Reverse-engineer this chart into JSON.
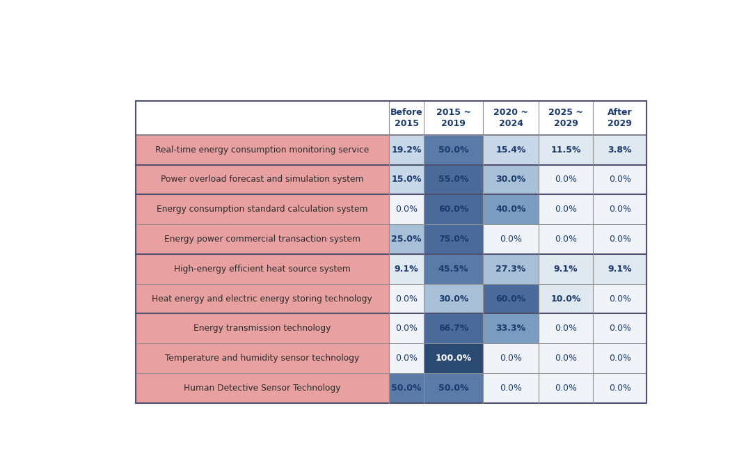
{
  "rows": [
    {
      "label": "Real-time energy consumption monitoring service",
      "values": [
        19.2,
        50.0,
        15.4,
        11.5,
        3.8
      ],
      "group": 0
    },
    {
      "label": "Power overload forecast and simulation system",
      "values": [
        15.0,
        55.0,
        30.0,
        0.0,
        0.0
      ],
      "group": 1
    },
    {
      "label": "Energy consumption standard calculation system",
      "values": [
        0.0,
        60.0,
        40.0,
        0.0,
        0.0
      ],
      "group": 2
    },
    {
      "label": "Energy power commercial transaction system",
      "values": [
        25.0,
        75.0,
        0.0,
        0.0,
        0.0
      ],
      "group": 2
    },
    {
      "label": "High-energy efficient heat source system",
      "values": [
        9.1,
        45.5,
        27.3,
        9.1,
        9.1
      ],
      "group": 3
    },
    {
      "label": "Heat energy and electric energy storing technology",
      "values": [
        0.0,
        30.0,
        60.0,
        10.0,
        0.0
      ],
      "group": 3
    },
    {
      "label": "Energy transmission technology",
      "values": [
        0.0,
        66.7,
        33.3,
        0.0,
        0.0
      ],
      "group": 4
    },
    {
      "label": "Temperature and humidity sensor technology",
      "values": [
        0.0,
        100.0,
        0.0,
        0.0,
        0.0
      ],
      "group": 4
    },
    {
      "label": "Human Detective Sensor Technology",
      "values": [
        50.0,
        50.0,
        0.0,
        0.0,
        0.0
      ],
      "group": 4
    }
  ],
  "col_headers": [
    "Before\n2015",
    "2015 ~\n2019",
    "2020 ~\n2024",
    "2025 ~\n2029",
    "After\n2029"
  ],
  "row_bg_color": "#E8A0A0",
  "cell_bg_white": "#F0F3F7",
  "blue_shades": {
    "very_dark": "#2B4A72",
    "dark": "#4A6A9A",
    "medium_dark": "#5A7BA8",
    "medium": "#7A9CC0",
    "light": "#A8C0D8",
    "very_light": "#C8D8E8",
    "pale": "#E0E8F0"
  },
  "text_color_dark": "#1A3A6B",
  "text_color_white": "#FFFFFF",
  "grid_line_color": "#909090",
  "group_border_color": "#505070",
  "header_color": "#1A3A6B",
  "group_separators": [
    1,
    2,
    4,
    6
  ]
}
